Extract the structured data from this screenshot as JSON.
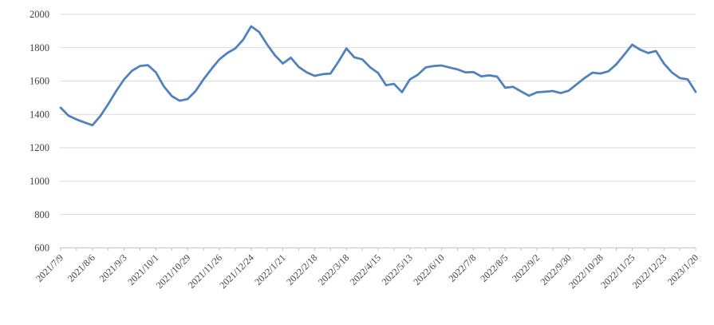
{
  "chart_data": {
    "type": "line",
    "title": "",
    "xlabel": "",
    "ylabel": "",
    "legend": "none",
    "grid": "horizontal",
    "ylim": [
      600,
      2000
    ],
    "y_ticks": [
      600,
      800,
      1000,
      1200,
      1400,
      1600,
      1800,
      2000
    ],
    "x_tick_labels": [
      "2021/7/9",
      "2021/8/6",
      "2021/9/3",
      "2021/10/1",
      "2021/10/29",
      "2021/11/26",
      "2021/12/24",
      "2022/1/21",
      "2022/2/18",
      "2022/3/18",
      "2022/4/15",
      "2022/5/13",
      "2022/6/10",
      "2022/7/8",
      "2022/8/5",
      "2022/9/2",
      "2022/9/30",
      "2022/10/28",
      "2022/11/25",
      "2022/12/23",
      "2023/1/20"
    ],
    "points_cadence": "weekly",
    "labeled_tick_every_n_points": 4,
    "minor_tick_every_n_points": 2,
    "values": [
      1440,
      1392,
      1370,
      1352,
      1335,
      1390,
      1462,
      1540,
      1610,
      1662,
      1690,
      1695,
      1652,
      1568,
      1510,
      1482,
      1492,
      1540,
      1610,
      1672,
      1730,
      1768,
      1795,
      1848,
      1928,
      1894,
      1820,
      1754,
      1705,
      1740,
      1684,
      1652,
      1631,
      1641,
      1645,
      1716,
      1795,
      1742,
      1730,
      1682,
      1648,
      1575,
      1583,
      1533,
      1610,
      1638,
      1682,
      1690,
      1693,
      1681,
      1670,
      1652,
      1654,
      1628,
      1634,
      1626,
      1560,
      1565,
      1538,
      1512,
      1532,
      1536,
      1540,
      1528,
      1542,
      1580,
      1618,
      1650,
      1645,
      1658,
      1700,
      1758,
      1818,
      1788,
      1768,
      1780,
      1705,
      1652,
      1618,
      1610,
      1535
    ],
    "colors": {
      "line": "#4e81bd",
      "gridline": "#d9d9d9",
      "axis": "#bfbfbf",
      "label_text": "#3f3f3f",
      "background": "#ffffff"
    }
  }
}
